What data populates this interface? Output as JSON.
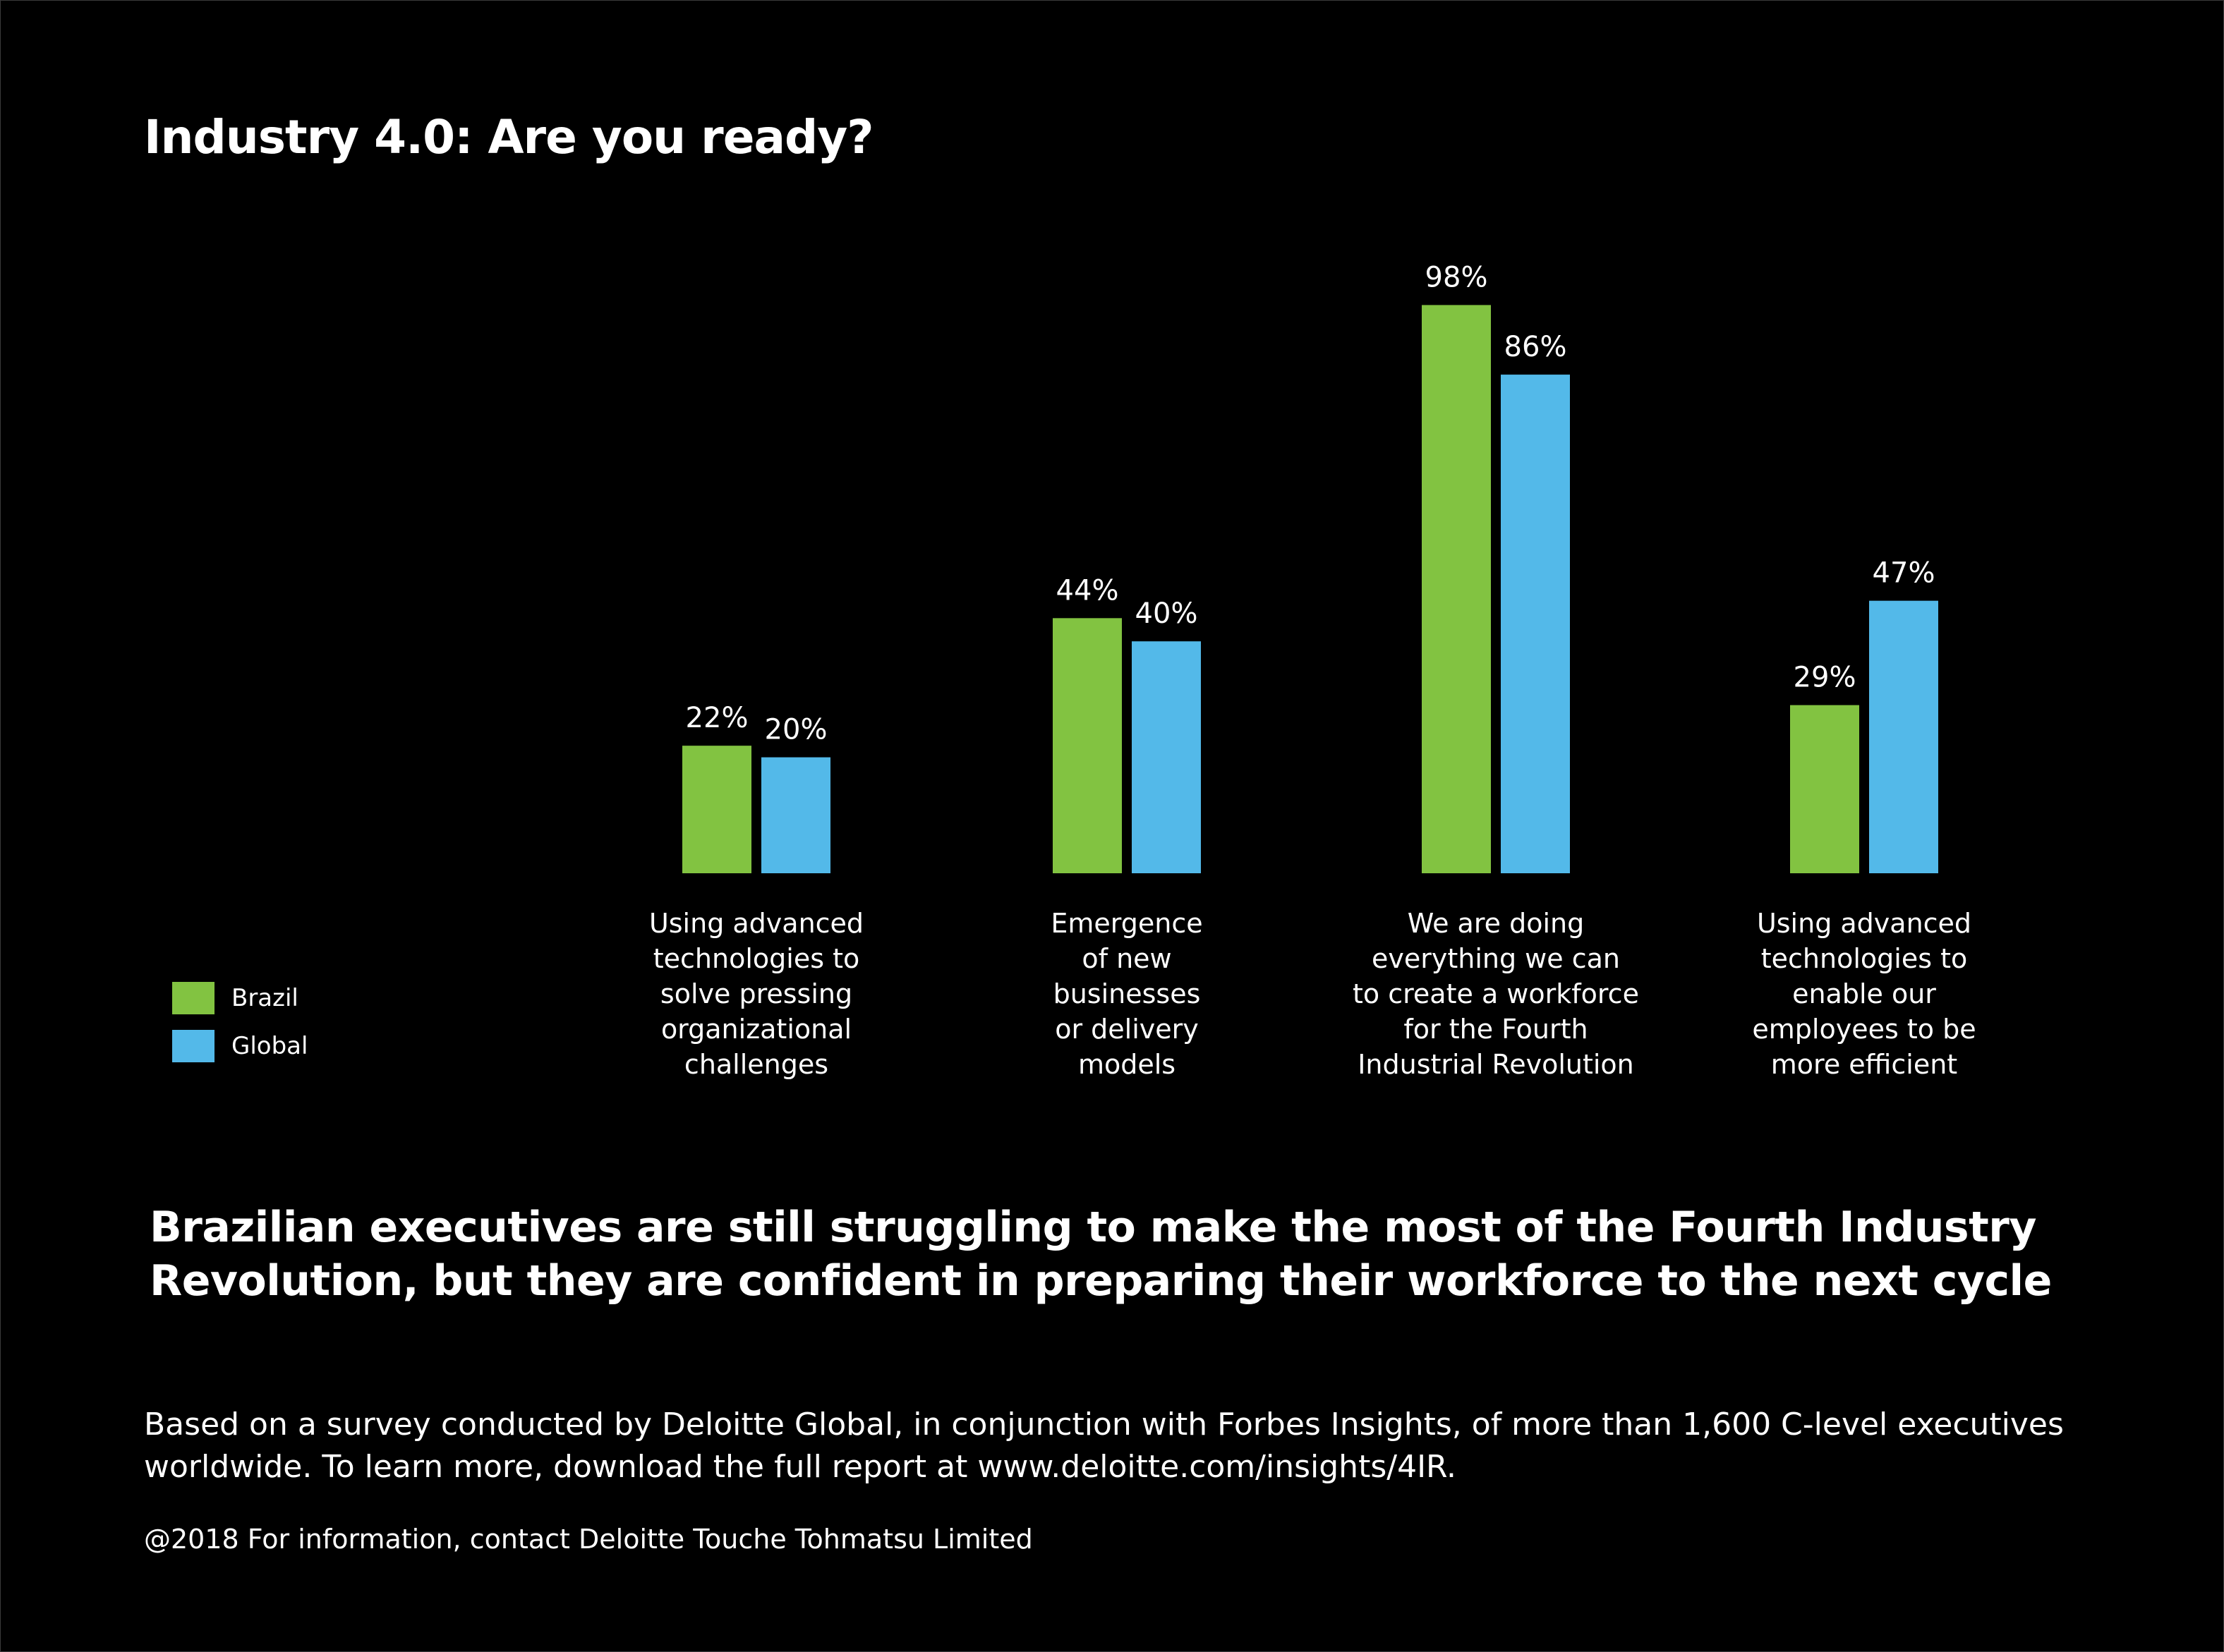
{
  "title": "Industry 4.0: Are you ready?",
  "legend": [
    {
      "label": "Brazil",
      "color": "#82c341"
    },
    {
      "label": "Global",
      "color": "#53b9e9"
    }
  ],
  "chart_data": {
    "type": "bar",
    "categories": [
      [
        "Using advanced",
        "technologies to",
        "solve pressing",
        "organizational",
        "challenges"
      ],
      [
        "Emergence",
        "of new",
        "businesses",
        "or delivery",
        "models"
      ],
      [
        "We are doing",
        "everything we can",
        "to create a workforce",
        "for the Fourth",
        "Industrial Revolution"
      ],
      [
        "Using advanced",
        "technologies to",
        "enable our",
        "employees to be",
        "more efficient"
      ]
    ],
    "series": [
      {
        "name": "Brazil",
        "values": [
          22,
          44,
          98,
          29
        ],
        "labels": [
          "22%",
          "44%",
          "98%",
          "29%"
        ],
        "color": "#82c341"
      },
      {
        "name": "Global",
        "values": [
          20,
          40,
          86,
          47
        ],
        "labels": [
          "20%",
          "40%",
          "86%",
          "47%"
        ],
        "color": "#53b9e9"
      }
    ],
    "ylim": [
      0,
      100
    ],
    "grid": false,
    "legend_position": "left"
  },
  "headline": "Brazilian executives are still struggling to make the most of the Fourth Industry Revolution, but they are confident in preparing their workforce to the next cycle",
  "source": "Based on a survey conducted by Deloitte Global, in conjunction with Forbes Insights, of more than 1,600 C-level executives worldwide. To learn more, download the full report at www.deloitte.com/insights/4IR.",
  "copyright": "@2018 For information, contact Deloitte Touche Tohmatsu Limited"
}
